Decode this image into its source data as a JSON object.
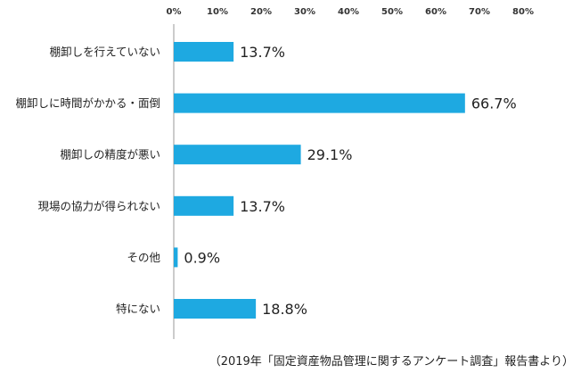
{
  "chart_data": {
    "type": "bar",
    "orientation": "horizontal",
    "categories": [
      "棚卸しを行えていない",
      "棚卸しに時間がかかる・面倒",
      "棚卸しの精度が悪い",
      "現場の協力が得られない",
      "その他",
      "特にない"
    ],
    "values": [
      13.7,
      66.7,
      29.1,
      13.7,
      0.9,
      18.8
    ],
    "value_labels": [
      "13.7%",
      "66.7%",
      "29.1%",
      "13.7%",
      "0.9%",
      "18.8%"
    ],
    "xlim": [
      0,
      80
    ],
    "x_ticks": [
      0,
      10,
      20,
      30,
      40,
      50,
      60,
      70,
      80
    ],
    "x_tick_labels": [
      "0%",
      "10%",
      "20%",
      "30%",
      "40%",
      "50%",
      "60%",
      "70%",
      "80%"
    ],
    "x_axis_position": "top",
    "grid": false,
    "bar_color": "#1ea9e1"
  },
  "source_note": "（2019年「固定資産物品管理に関するアンケート調査」報告書より）"
}
